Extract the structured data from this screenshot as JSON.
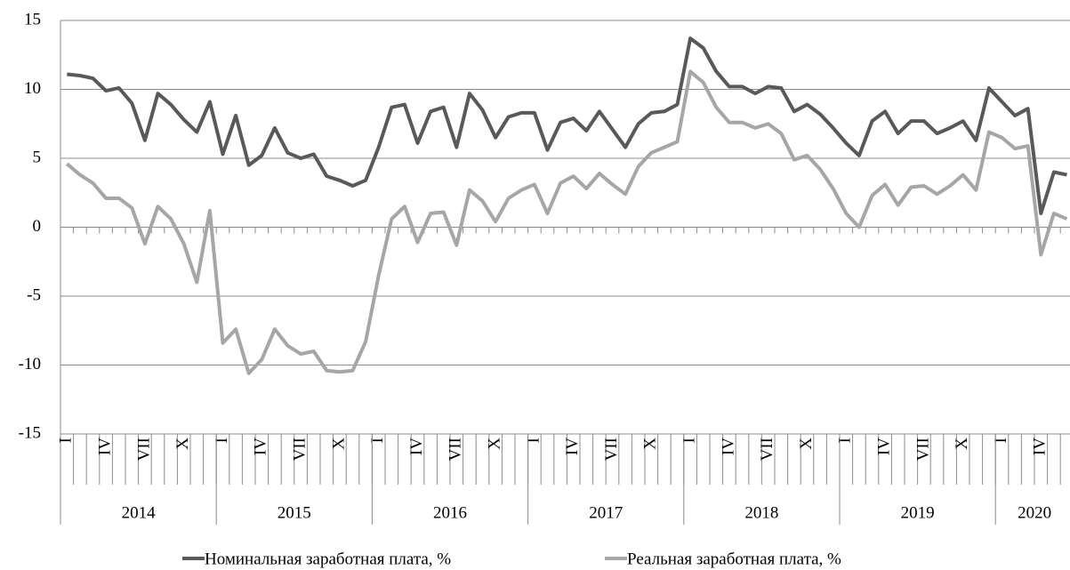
{
  "chart_data": {
    "type": "line",
    "categories": [
      "I",
      null,
      null,
      "IV",
      null,
      null,
      "VII",
      null,
      null,
      "X",
      null,
      null,
      "I",
      null,
      null,
      "IV",
      null,
      null,
      "VII",
      null,
      null,
      "X",
      null,
      null,
      "I",
      null,
      null,
      "IV",
      null,
      null,
      "VII",
      null,
      null,
      "X",
      null,
      null,
      "I",
      null,
      null,
      "IV",
      null,
      null,
      "VII",
      null,
      null,
      "X",
      null,
      null,
      "I",
      null,
      null,
      "IV",
      null,
      null,
      "VII",
      null,
      null,
      "X",
      null,
      null,
      "I",
      null,
      null,
      "IV",
      null,
      null,
      "VII",
      null,
      null,
      "X",
      null,
      null,
      "I",
      null,
      null,
      "IV",
      null,
      null
    ],
    "year_groups": [
      "2014",
      "2015",
      "2016",
      "2017",
      "2018",
      "2019",
      "2020"
    ],
    "series": [
      {
        "name": "Номинальная заработная плата, %",
        "color": "#595959",
        "values": [
          11.1,
          11.0,
          10.8,
          9.9,
          10.1,
          9.0,
          6.3,
          9.7,
          8.9,
          7.8,
          6.9,
          9.1,
          5.3,
          8.1,
          4.5,
          5.2,
          7.2,
          5.4,
          5.0,
          5.3,
          3.7,
          3.4,
          3.0,
          3.4,
          5.8,
          8.7,
          8.9,
          6.1,
          8.4,
          8.7,
          5.8,
          9.7,
          8.5,
          6.5,
          8.0,
          8.3,
          8.3,
          5.6,
          7.6,
          7.9,
          7.0,
          8.4,
          7.1,
          5.8,
          7.5,
          8.3,
          8.4,
          8.9,
          13.7,
          13.0,
          11.3,
          10.2,
          10.2,
          9.7,
          10.2,
          10.1,
          8.4,
          8.9,
          8.2,
          7.2,
          6.1,
          5.2,
          7.7,
          8.4,
          6.8,
          7.7,
          7.7,
          6.8,
          7.2,
          7.7,
          6.3,
          10.1,
          9.1,
          8.1,
          8.6,
          1.0,
          4.0,
          3.8
        ]
      },
      {
        "name": "Реальная заработная плата, %",
        "color": "#a6a6a6",
        "values": [
          4.6,
          3.8,
          3.2,
          2.1,
          2.1,
          1.4,
          -1.2,
          1.5,
          0.6,
          -1.2,
          -4.0,
          1.2,
          -8.4,
          -7.4,
          -10.6,
          -9.6,
          -7.4,
          -8.6,
          -9.2,
          -9.0,
          -10.4,
          -10.5,
          -10.4,
          -8.3,
          -3.5,
          0.6,
          1.5,
          -1.1,
          1.0,
          1.1,
          -1.3,
          2.7,
          1.9,
          0.4,
          2.1,
          2.7,
          3.1,
          1.0,
          3.2,
          3.7,
          2.8,
          3.9,
          3.1,
          2.4,
          4.4,
          5.4,
          5.8,
          6.2,
          11.3,
          10.5,
          8.7,
          7.6,
          7.6,
          7.2,
          7.5,
          6.8,
          4.9,
          5.2,
          4.2,
          2.8,
          1.0,
          0.0,
          2.3,
          3.1,
          1.6,
          2.9,
          3.0,
          2.4,
          3.0,
          3.8,
          2.7,
          6.9,
          6.5,
          5.7,
          5.9,
          -2.0,
          1.0,
          0.6
        ]
      }
    ],
    "ylim": [
      -15,
      15
    ],
    "yticks": [
      -15,
      -10,
      -5,
      0,
      5,
      10,
      15
    ],
    "grid": true,
    "legend": "bottom"
  }
}
